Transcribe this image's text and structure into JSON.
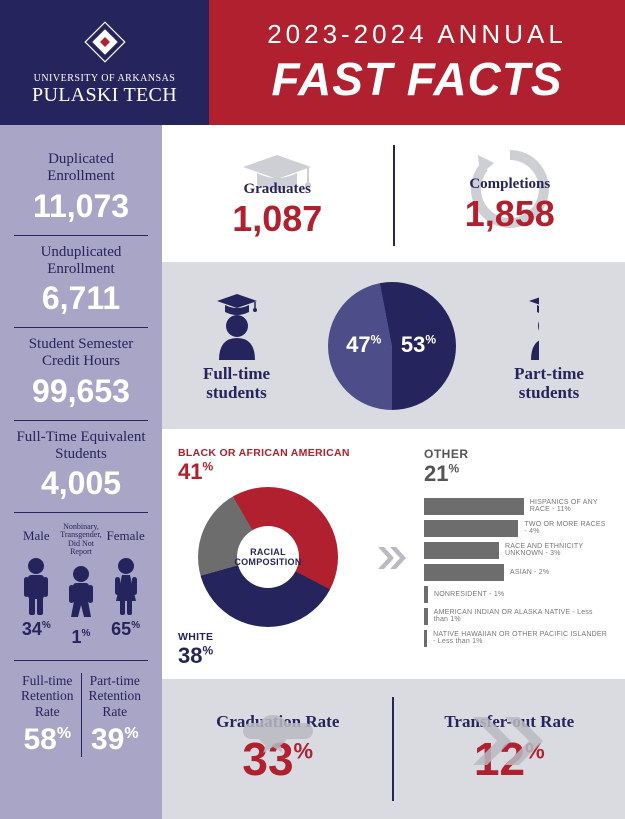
{
  "colors": {
    "navy": "#26245c",
    "red": "#b0202e",
    "lavender": "#a9a5c6",
    "lightgrey": "#dadbe0",
    "midblue": "#4d4d8a",
    "grey": "#6d6d6d"
  },
  "header": {
    "univ_line1": "UNIVERSITY OF ARKANSAS",
    "univ_line2": "PULASKI TECH",
    "year": "2023-2024 ANNUAL",
    "title": "FAST FACTS"
  },
  "sidebar": {
    "stats": [
      {
        "label": "Duplicated Enrollment",
        "value": "11,073"
      },
      {
        "label": "Unduplicated Enrollment",
        "value": "6,711"
      },
      {
        "label": "Student Semester\nCredit Hours",
        "value": "99,653"
      },
      {
        "label": "Full-Time Equivalent\nStudents",
        "value": "4,005"
      }
    ],
    "gender": [
      {
        "label": "Male",
        "pct": "34"
      },
      {
        "label": "Nonbinary,\nTransgender,\nDid Not Report",
        "pct": "1"
      },
      {
        "label": "Female",
        "pct": "65"
      }
    ],
    "retention": [
      {
        "label": "Full-time\nRetention\nRate",
        "value": "58"
      },
      {
        "label": "Part-time\nRetention\nRate",
        "value": "39"
      }
    ]
  },
  "grad_comp": {
    "graduates": {
      "label": "Graduates",
      "value": "1,087"
    },
    "completions": {
      "label": "Completions",
      "value": "1,858"
    }
  },
  "ftpt": {
    "full": "Full-time\nstudents",
    "part": "Part-time\nstudents",
    "full_pct": "47",
    "part_pct": "53",
    "full_color": "#4d4d8a",
    "part_color": "#26245c"
  },
  "race": {
    "center": "RACIAL\nCOMPOSITION",
    "segments": [
      {
        "label": "BLACK OR AFRICAN AMERICAN",
        "pct": "41",
        "color": "#b0202e"
      },
      {
        "label": "WHITE",
        "pct": "38",
        "color": "#26245c"
      },
      {
        "label": "OTHER",
        "pct": "21",
        "color": "#6d6d6d"
      }
    ],
    "other_breakdown": [
      {
        "label": "HISPANICS OF ANY RACE",
        "pct": "11%",
        "w": 140
      },
      {
        "label": "TWO OR MORE RACES",
        "pct": "4%",
        "w": 110
      },
      {
        "label": "RACE AND ETHNICITY UNKNOWN",
        "pct": "3%",
        "w": 98
      },
      {
        "label": "ASIAN",
        "pct": "2%",
        "w": 80
      },
      {
        "label": "NONRESIDENT",
        "pct": "1%",
        "w": 4
      },
      {
        "label": "AMERICAN INDIAN OR ALASKA NATIVE",
        "pct": "Less than 1%",
        "w": 4
      },
      {
        "label": "NATIVE HAWAIIAN OR OTHER PACIFIC ISLANDER",
        "pct": "Less than 1%",
        "w": 4
      }
    ]
  },
  "rates": {
    "grad": {
      "label": "Graduation Rate",
      "value": "33"
    },
    "transfer": {
      "label": "Transfer-out Rate",
      "value": "12"
    }
  }
}
